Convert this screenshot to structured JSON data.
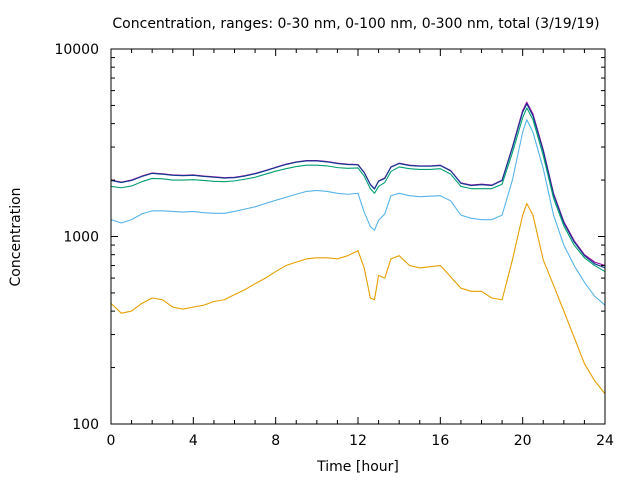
{
  "chart_data": {
    "type": "line",
    "title": "Concentration, ranges: 0-30 nm, 0-100 nm, 0-300 nm, total (3/19/19)",
    "xlabel": "Time [hour]",
    "ylabel": "Concentration",
    "xlim": [
      0,
      24
    ],
    "ylim": [
      100,
      10000
    ],
    "yscale": "log",
    "grid": false,
    "legend": "none",
    "x_ticks": [
      0,
      4,
      8,
      12,
      16,
      20,
      24
    ],
    "x_tick_labels": [
      "0",
      "4",
      "8",
      "12",
      "16",
      "20",
      "24"
    ],
    "y_ticks": [
      100,
      1000,
      10000
    ],
    "y_tick_labels": [
      "100",
      "1000",
      "10000"
    ],
    "x": [
      0,
      0.5,
      1,
      1.5,
      2,
      2.5,
      3,
      3.5,
      4,
      4.5,
      5,
      5.5,
      6,
      6.5,
      7,
      7.5,
      8,
      8.5,
      9,
      9.5,
      10,
      10.5,
      11,
      11.5,
      12,
      12.3,
      12.6,
      12.8,
      13,
      13.3,
      13.6,
      14,
      14.5,
      15,
      15.5,
      16,
      16.5,
      17,
      17.5,
      18,
      18.5,
      19,
      19.5,
      20,
      20.2,
      20.5,
      21,
      21.5,
      22,
      22.5,
      23,
      23.5,
      24
    ],
    "series": [
      {
        "color": "#990099",
        "values": [
          2000,
          1950,
          2000,
          2100,
          2180,
          2160,
          2130,
          2120,
          2130,
          2100,
          2080,
          2060,
          2070,
          2110,
          2170,
          2250,
          2340,
          2430,
          2500,
          2540,
          2540,
          2510,
          2460,
          2430,
          2420,
          2200,
          1900,
          1800,
          1980,
          2050,
          2350,
          2460,
          2400,
          2380,
          2380,
          2400,
          2250,
          1930,
          1880,
          1900,
          1880,
          2000,
          3000,
          4700,
          5200,
          4500,
          2900,
          1700,
          1200,
          950,
          800,
          730,
          700
        ]
      },
      {
        "color": "#0b3d91",
        "values": [
          1990,
          1940,
          1990,
          2090,
          2170,
          2150,
          2120,
          2110,
          2120,
          2090,
          2070,
          2050,
          2060,
          2100,
          2160,
          2240,
          2330,
          2420,
          2490,
          2530,
          2530,
          2500,
          2450,
          2420,
          2410,
          2190,
          1890,
          1790,
          1970,
          2040,
          2340,
          2450,
          2390,
          2370,
          2370,
          2390,
          2240,
          1920,
          1870,
          1890,
          1870,
          1990,
          2970,
          4600,
          5100,
          4400,
          2850,
          1670,
          1180,
          935,
          790,
          715,
          680
        ]
      },
      {
        "color": "#009e73",
        "values": [
          1850,
          1820,
          1860,
          1960,
          2040,
          2030,
          2000,
          2000,
          2010,
          1990,
          1970,
          1960,
          1980,
          2020,
          2070,
          2150,
          2230,
          2300,
          2360,
          2400,
          2400,
          2380,
          2330,
          2310,
          2320,
          2100,
          1800,
          1700,
          1850,
          1940,
          2220,
          2350,
          2300,
          2280,
          2280,
          2300,
          2150,
          1850,
          1800,
          1800,
          1800,
          1900,
          2800,
          4300,
          4850,
          4200,
          2700,
          1600,
          1140,
          900,
          770,
          700,
          650
        ]
      },
      {
        "color": "#56b4e9",
        "values": [
          1230,
          1180,
          1230,
          1320,
          1370,
          1370,
          1360,
          1350,
          1360,
          1340,
          1330,
          1330,
          1360,
          1400,
          1440,
          1500,
          1560,
          1620,
          1680,
          1740,
          1760,
          1740,
          1700,
          1680,
          1700,
          1350,
          1130,
          1080,
          1220,
          1320,
          1650,
          1700,
          1650,
          1630,
          1640,
          1650,
          1550,
          1300,
          1250,
          1230,
          1230,
          1300,
          2000,
          3600,
          4200,
          3600,
          2300,
          1300,
          900,
          700,
          570,
          480,
          430
        ]
      },
      {
        "color": "#e69f00",
        "values": [
          440,
          390,
          400,
          440,
          470,
          460,
          420,
          410,
          420,
          430,
          450,
          460,
          490,
          520,
          560,
          600,
          650,
          700,
          730,
          760,
          770,
          770,
          760,
          790,
          840,
          680,
          470,
          460,
          620,
          600,
          760,
          790,
          700,
          680,
          690,
          700,
          610,
          530,
          510,
          510,
          470,
          460,
          750,
          1300,
          1500,
          1300,
          750,
          550,
          400,
          290,
          210,
          170,
          145
        ]
      }
    ]
  }
}
